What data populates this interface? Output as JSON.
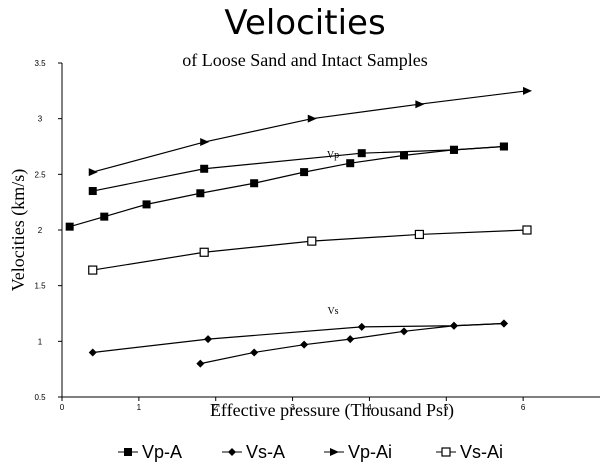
{
  "chart_data": {
    "type": "line",
    "title": "Velocities",
    "subtitle": "of Loose Sand and Intact Samples",
    "xlabel": "Effective pressure (Thousand Psi)",
    "ylabel": "Velocities (km/s)",
    "xlim": [
      0,
      7
    ],
    "ylim": [
      0.5,
      3.5
    ],
    "x_ticks": [
      "0",
      "1",
      "2",
      "3",
      "4",
      "5",
      "6"
    ],
    "y_ticks": [
      "0.5",
      "1",
      "1.5",
      "2",
      "2.5",
      "3",
      "3.5"
    ],
    "legend_position": "bottom",
    "annotations": [
      {
        "text": "Vp",
        "x": 3.5,
        "y": 2.73
      },
      {
        "text": "Vs",
        "x": 3.5,
        "y": 1.37
      }
    ],
    "series": [
      {
        "name": "Vp-A",
        "marker": "square-filled",
        "color": "#000000",
        "x": [
          0.1,
          0.55,
          1.1,
          1.8,
          2.5,
          3.15,
          3.75,
          4.45,
          5.1,
          5.75
        ],
        "y": [
          2.03,
          2.12,
          2.23,
          2.33,
          2.42,
          2.52,
          2.6,
          2.67,
          2.72,
          2.75
        ]
      },
      {
        "name": "Vs-A",
        "marker": "diamond-filled",
        "color": "#000000",
        "x": [
          1.8,
          2.5,
          3.15,
          3.75,
          4.45,
          5.1,
          5.75
        ],
        "y": [
          0.8,
          0.9,
          0.97,
          1.02,
          1.09,
          1.14,
          1.16
        ]
      },
      {
        "name": "Vp-Ai",
        "marker": "triangle-right-filled",
        "color": "#000000",
        "x": [
          0.4,
          1.85,
          3.25,
          4.65,
          6.05
        ],
        "y": [
          2.52,
          2.79,
          3.0,
          3.13,
          3.25
        ]
      },
      {
        "name": "Vs-Ai",
        "marker": "square-open",
        "color": "#000000",
        "x": [
          0.4,
          1.85,
          3.25,
          4.65,
          6.05
        ],
        "y": [
          1.64,
          1.8,
          1.9,
          1.96,
          2.0
        ]
      },
      {
        "name": "",
        "marker": "square-filled",
        "color": "#000000",
        "legend": false,
        "x": [
          0.4,
          1.85,
          3.9,
          5.1,
          5.75
        ],
        "y": [
          2.35,
          2.55,
          2.69,
          2.72,
          2.75
        ]
      },
      {
        "name": "",
        "marker": "diamond-filled",
        "color": "#000000",
        "legend": false,
        "x": [
          0.4,
          1.9,
          3.9,
          5.1,
          5.75
        ],
        "y": [
          0.9,
          1.02,
          1.13,
          1.14,
          1.16
        ]
      }
    ]
  }
}
